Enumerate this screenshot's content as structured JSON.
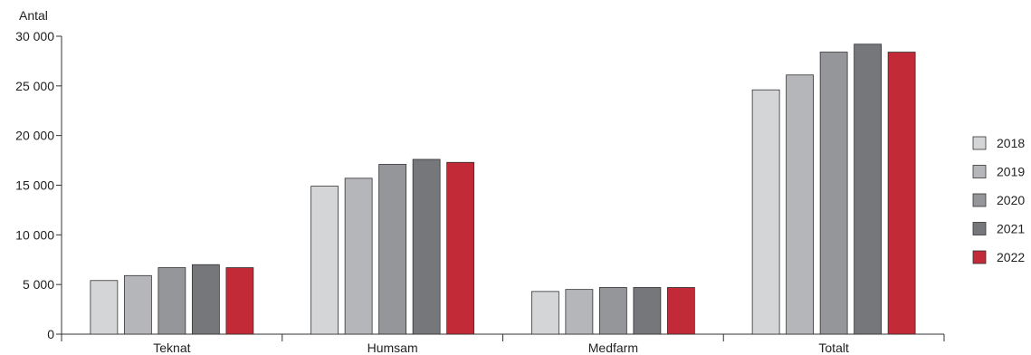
{
  "chart_data": {
    "type": "bar",
    "ylabel": "Antal",
    "ylim": [
      0,
      30000
    ],
    "yticks": [
      {
        "value": 0,
        "label": "0"
      },
      {
        "value": 5000,
        "label": "5 000"
      },
      {
        "value": 10000,
        "label": "10 000"
      },
      {
        "value": 15000,
        "label": "15 000"
      },
      {
        "value": 20000,
        "label": "20 000"
      },
      {
        "value": 25000,
        "label": "25 000"
      },
      {
        "value": 30000,
        "label": "30 000"
      }
    ],
    "categories": [
      "Teknat",
      "Humsam",
      "Medfarm",
      "Totalt"
    ],
    "series": [
      {
        "name": "2018",
        "color": "#d4d5d7",
        "values": [
          5400,
          14900,
          4300,
          24600
        ]
      },
      {
        "name": "2019",
        "color": "#b5b6b9",
        "values": [
          5900,
          15700,
          4500,
          26100
        ]
      },
      {
        "name": "2020",
        "color": "#95969a",
        "values": [
          6700,
          17100,
          4700,
          28400
        ]
      },
      {
        "name": "2021",
        "color": "#76777b",
        "values": [
          7000,
          17600,
          4700,
          29200
        ]
      },
      {
        "name": "2022",
        "color": "#c12a36",
        "values": [
          6700,
          17300,
          4700,
          28400
        ]
      }
    ],
    "grid": false,
    "legend_position": "right"
  }
}
